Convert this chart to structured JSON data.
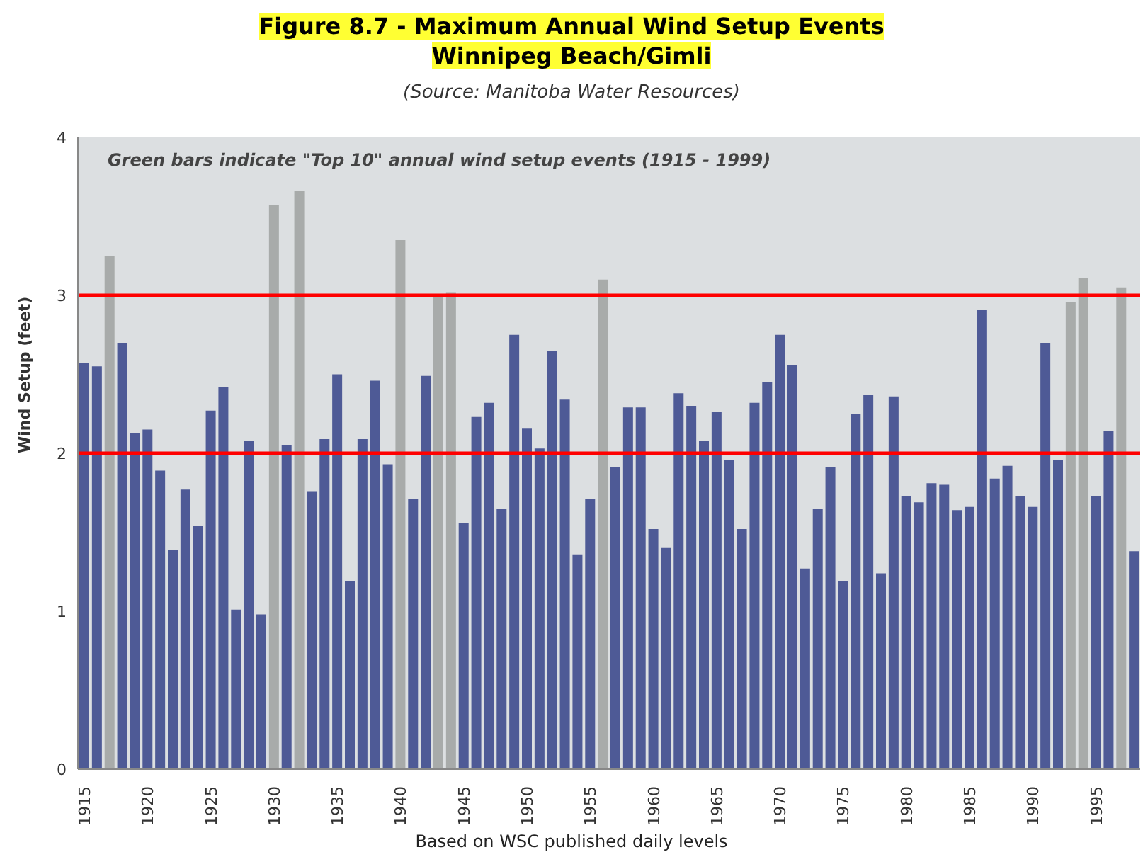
{
  "chart_data": {
    "type": "bar",
    "title": "Figure 8.7 - Maximum Annual Wind Setup Events",
    "subtitle": "Winnipeg Beach/Gimli",
    "annotations": [
      "(Source: Manitoba Water Resources)",
      "Green bars indicate \"Top 10\" annual wind setup events (1915 - 1999)"
    ],
    "xlabel": "Based on WSC published daily levels",
    "ylabel": "Wind Setup (feet)",
    "categories": [
      "1915",
      null,
      null,
      null,
      null,
      "1920",
      null,
      null,
      null,
      null,
      "1925",
      null,
      null,
      null,
      null,
      "1930",
      null,
      null,
      null,
      null,
      "1935",
      null,
      null,
      null,
      null,
      "1940",
      null,
      null,
      null,
      null,
      "1945",
      null,
      null,
      null,
      null,
      "1950",
      null,
      null,
      null,
      null,
      "1955",
      null,
      null,
      null,
      null,
      "1960",
      null,
      null,
      null,
      null,
      "1965",
      null,
      null,
      null,
      null,
      "1970",
      null,
      null,
      null,
      null,
      "1975",
      null,
      null,
      null,
      null,
      "1980",
      null,
      null,
      null,
      null,
      "1985",
      null,
      null,
      null,
      null,
      "1990",
      null,
      null,
      null,
      null,
      "1995",
      null,
      null,
      null
    ],
    "values": [
      2.57,
      2.55,
      3.25,
      2.7,
      2.13,
      2.15,
      1.89,
      1.39,
      1.77,
      1.54,
      2.27,
      2.42,
      1.01,
      2.08,
      0.98,
      3.57,
      2.05,
      3.66,
      1.76,
      2.09,
      2.5,
      1.19,
      2.09,
      2.46,
      1.93,
      3.35,
      1.71,
      2.49,
      3.0,
      3.02,
      1.56,
      2.23,
      2.32,
      1.65,
      2.75,
      2.16,
      2.03,
      2.65,
      2.34,
      1.36,
      1.71,
      3.1,
      1.91,
      2.29,
      2.29,
      1.52,
      1.4,
      2.38,
      2.3,
      2.08,
      2.26,
      1.96,
      1.52,
      2.32,
      2.45,
      2.75,
      2.56,
      1.27,
      1.65,
      1.91,
      1.19,
      2.25,
      2.37,
      1.24,
      2.36,
      1.73,
      1.69,
      1.81,
      1.8,
      1.64,
      1.66,
      2.91,
      1.84,
      1.92,
      1.73,
      1.66,
      2.7,
      1.96,
      2.96,
      3.11,
      1.73,
      2.14,
      3.05,
      1.38
    ],
    "colors": [
      "#4e5a96",
      "#4e5a96",
      "#a8abaa",
      "#4e5a96",
      "#4e5a96",
      "#4e5a96",
      "#4e5a96",
      "#4e5a96",
      "#4e5a96",
      "#4e5a96",
      "#4e5a96",
      "#4e5a96",
      "#4e5a96",
      "#4e5a96",
      "#4e5a96",
      "#a8abaa",
      "#4e5a96",
      "#a8abaa",
      "#4e5a96",
      "#4e5a96",
      "#4e5a96",
      "#4e5a96",
      "#4e5a96",
      "#4e5a96",
      "#4e5a96",
      "#a8abaa",
      "#4e5a96",
      "#4e5a96",
      "#a8abaa",
      "#a8abaa",
      "#4e5a96",
      "#4e5a96",
      "#4e5a96",
      "#4e5a96",
      "#4e5a96",
      "#4e5a96",
      "#4e5a96",
      "#4e5a96",
      "#4e5a96",
      "#4e5a96",
      "#4e5a96",
      "#a8abaa",
      "#4e5a96",
      "#4e5a96",
      "#4e5a96",
      "#4e5a96",
      "#4e5a96",
      "#4e5a96",
      "#4e5a96",
      "#4e5a96",
      "#4e5a96",
      "#4e5a96",
      "#4e5a96",
      "#4e5a96",
      "#4e5a96",
      "#4e5a96",
      "#4e5a96",
      "#4e5a96",
      "#4e5a96",
      "#4e5a96",
      "#4e5a96",
      "#4e5a96",
      "#4e5a96",
      "#4e5a96",
      "#4e5a96",
      "#4e5a96",
      "#4e5a96",
      "#4e5a96",
      "#4e5a96",
      "#4e5a96",
      "#4e5a96",
      "#4e5a96",
      "#4e5a96",
      "#4e5a96",
      "#4e5a96",
      "#4e5a96",
      "#4e5a96",
      "#4e5a96",
      "#a8abaa",
      "#a8abaa",
      "#4e5a96",
      "#4e5a96",
      "#a8abaa",
      "#4e5a96"
    ],
    "ylim": [
      0,
      4
    ],
    "yticks": [
      0,
      1,
      2,
      3,
      4
    ],
    "ref_lines": [
      {
        "axis": "y",
        "value": 3,
        "color": "#ff0000"
      },
      {
        "axis": "y",
        "value": 2,
        "color": "#ff0000"
      }
    ]
  }
}
